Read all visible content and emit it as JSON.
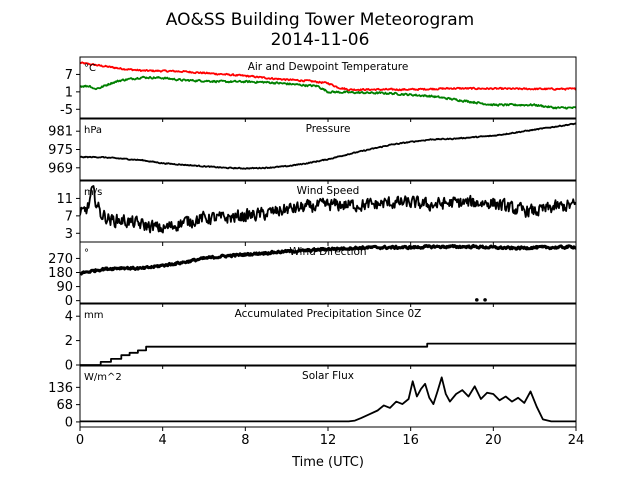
{
  "figure": {
    "title_line1": "AO&SS Building Tower Meteorogram",
    "title_line2": "2014-11-06",
    "xlabel": "Time (UTC)"
  },
  "chart_data": {
    "type": "line",
    "xlim": [
      0,
      24
    ],
    "xticks": [
      0,
      4,
      8,
      12,
      16,
      20,
      24
    ],
    "grid": false,
    "panels": [
      {
        "id": "temperature",
        "title": "Air and Dewpoint Temperature",
        "unit": "°C",
        "ylim": [
          -8,
          13
        ],
        "yticks": [
          -5,
          1,
          7
        ],
        "series": [
          {
            "color": "#ff0000",
            "noise": 0.25,
            "points": [
              [
                0,
                11
              ],
              [
                0.5,
                10.5
              ],
              [
                1,
                10
              ],
              [
                1.5,
                9.5
              ],
              [
                2,
                9
              ],
              [
                3,
                8.3
              ],
              [
                4,
                8.2
              ],
              [
                5,
                8
              ],
              [
                6,
                7.5
              ],
              [
                7,
                7
              ],
              [
                8,
                6.5
              ],
              [
                9,
                5.8
              ],
              [
                10,
                5.2
              ],
              [
                11,
                4.8
              ],
              [
                12,
                4
              ],
              [
                12.5,
                2.5
              ],
              [
                13,
                1.8
              ],
              [
                14,
                1.8
              ],
              [
                16,
                1.8
              ],
              [
                17,
                2
              ],
              [
                18,
                2.2
              ],
              [
                20,
                2.1
              ],
              [
                22,
                2
              ],
              [
                24,
                2
              ]
            ]
          },
          {
            "color": "#008000",
            "noise": 0.3,
            "points": [
              [
                0,
                3
              ],
              [
                0.5,
                3
              ],
              [
                0.7,
                2
              ],
              [
                1,
                2.5
              ],
              [
                1.5,
                4
              ],
              [
                2,
                5
              ],
              [
                3,
                6
              ],
              [
                4,
                5.8
              ],
              [
                5,
                5
              ],
              [
                6,
                4.8
              ],
              [
                7,
                4.5
              ],
              [
                8,
                4.5
              ],
              [
                9,
                4.3
              ],
              [
                10,
                3.8
              ],
              [
                11,
                3.2
              ],
              [
                11.5,
                3
              ],
              [
                12,
                1
              ],
              [
                13,
                0.8
              ],
              [
                15,
                0.5
              ],
              [
                16,
                0
              ],
              [
                17,
                -0.5
              ],
              [
                18,
                -1.5
              ],
              [
                19,
                -2.5
              ],
              [
                20,
                -3.5
              ],
              [
                21,
                -3.5
              ],
              [
                22,
                -3.5
              ],
              [
                23,
                -4.5
              ],
              [
                24,
                -4.5
              ]
            ]
          }
        ]
      },
      {
        "id": "pressure",
        "title": "Pressure",
        "unit": "hPa",
        "ylim": [
          965,
          985
        ],
        "yticks": [
          969,
          975,
          981
        ],
        "series": [
          {
            "color": "#000000",
            "noise": 0.15,
            "points": [
              [
                0,
                972.5
              ],
              [
                1,
                972.5
              ],
              [
                2,
                972
              ],
              [
                3,
                971.5
              ],
              [
                4,
                970.5
              ],
              [
                5,
                970
              ],
              [
                6,
                969.5
              ],
              [
                7,
                969
              ],
              [
                8,
                968.8
              ],
              [
                9,
                969
              ],
              [
                10,
                969.5
              ],
              [
                11,
                970.5
              ],
              [
                12,
                971.8
              ],
              [
                13,
                973.5
              ],
              [
                14,
                975
              ],
              [
                15,
                976.5
              ],
              [
                16,
                977.5
              ],
              [
                17,
                978.3
              ],
              [
                18,
                978.5
              ],
              [
                19,
                979
              ],
              [
                20,
                979.5
              ],
              [
                21,
                980.5
              ],
              [
                22,
                981.5
              ],
              [
                23,
                982.5
              ],
              [
                24,
                983.5
              ]
            ]
          }
        ]
      },
      {
        "id": "wind_speed",
        "title": "Wind Speed",
        "unit": "m/s",
        "ylim": [
          1,
          15
        ],
        "yticks": [
          3,
          7,
          11
        ],
        "series": [
          {
            "color": "#000000",
            "noise": 1.3,
            "points": [
              [
                0,
                7
              ],
              [
                0.4,
                9
              ],
              [
                0.6,
                13
              ],
              [
                0.8,
                10
              ],
              [
                1,
                7.5
              ],
              [
                1.5,
                6
              ],
              [
                2,
                6
              ],
              [
                3,
                5
              ],
              [
                4,
                4
              ],
              [
                5,
                5.5
              ],
              [
                6,
                6.5
              ],
              [
                7,
                6.5
              ],
              [
                8,
                7
              ],
              [
                9,
                7.5
              ],
              [
                10,
                8.5
              ],
              [
                11,
                9
              ],
              [
                12,
                9.5
              ],
              [
                13,
                9.5
              ],
              [
                14,
                9.5
              ],
              [
                15,
                10
              ],
              [
                16,
                10
              ],
              [
                17,
                9.5
              ],
              [
                18,
                10
              ],
              [
                19,
                10
              ],
              [
                20,
                10
              ],
              [
                21,
                8.5
              ],
              [
                22,
                8
              ],
              [
                23,
                9
              ],
              [
                24,
                9.5
              ]
            ]
          }
        ]
      },
      {
        "id": "wind_direction",
        "title": "Wind Direction",
        "unit": "°",
        "ylim": [
          -15,
          375
        ],
        "yticks": [
          0,
          90,
          180,
          270
        ],
        "series": [
          {
            "color": "#000000",
            "noise": 7,
            "points": [
              [
                0,
                175
              ],
              [
                1,
                200
              ],
              [
                2,
                210
              ],
              [
                3,
                205
              ],
              [
                4,
                225
              ],
              [
                5,
                245
              ],
              [
                6,
                270
              ],
              [
                7,
                285
              ],
              [
                8,
                295
              ],
              [
                9,
                305
              ],
              [
                10,
                315
              ],
              [
                11,
                320
              ],
              [
                12,
                330
              ],
              [
                13,
                335
              ],
              [
                14,
                340
              ],
              [
                15,
                340
              ],
              [
                16,
                340
              ],
              [
                17,
                345
              ],
              [
                18,
                345
              ],
              [
                19,
                345
              ],
              [
                20,
                340
              ],
              [
                21,
                335
              ],
              [
                22,
                340
              ],
              [
                23,
                340
              ],
              [
                24,
                345
              ]
            ]
          }
        ],
        "scatter": [
          [
            19.2,
            5
          ],
          [
            19.6,
            5
          ]
        ]
      },
      {
        "id": "precipitation",
        "title": "Accumulated Precipitation Since 0Z",
        "unit": "mm",
        "ylim": [
          0,
          5
        ],
        "yticks": [
          0,
          2,
          4
        ],
        "step": true,
        "series": [
          {
            "color": "#000000",
            "noise": 0,
            "points": [
              [
                0,
                0
              ],
              [
                1,
                0
              ],
              [
                1,
                0.25
              ],
              [
                1.5,
                0.25
              ],
              [
                1.5,
                0.5
              ],
              [
                2,
                0.5
              ],
              [
                2,
                0.8
              ],
              [
                2.4,
                0.8
              ],
              [
                2.4,
                1
              ],
              [
                2.8,
                1
              ],
              [
                2.8,
                1.2
              ],
              [
                3.2,
                1.2
              ],
              [
                3.2,
                1.5
              ],
              [
                16.8,
                1.5
              ],
              [
                16.8,
                1.75
              ],
              [
                24,
                1.75
              ]
            ]
          }
        ]
      },
      {
        "id": "solar_flux",
        "title": "Solar Flux",
        "unit": "W/m^2",
        "ylim": [
          -20,
          220
        ],
        "yticks": [
          0,
          68,
          136
        ],
        "series": [
          {
            "color": "#000000",
            "noise": 0,
            "points": [
              [
                0,
                2
              ],
              [
                13,
                2
              ],
              [
                13.3,
                5
              ],
              [
                13.6,
                15
              ],
              [
                14,
                30
              ],
              [
                14.4,
                45
              ],
              [
                14.7,
                65
              ],
              [
                15,
                55
              ],
              [
                15.3,
                80
              ],
              [
                15.6,
                70
              ],
              [
                15.9,
                90
              ],
              [
                16.1,
                160
              ],
              [
                16.3,
                100
              ],
              [
                16.5,
                130
              ],
              [
                16.7,
                150
              ],
              [
                16.9,
                95
              ],
              [
                17.1,
                70
              ],
              [
                17.3,
                120
              ],
              [
                17.5,
                175
              ],
              [
                17.7,
                110
              ],
              [
                17.9,
                80
              ],
              [
                18.2,
                110
              ],
              [
                18.5,
                125
              ],
              [
                18.8,
                100
              ],
              [
                19.1,
                140
              ],
              [
                19.4,
                90
              ],
              [
                19.7,
                115
              ],
              [
                20,
                110
              ],
              [
                20.3,
                85
              ],
              [
                20.6,
                100
              ],
              [
                20.9,
                80
              ],
              [
                21.2,
                95
              ],
              [
                21.5,
                75
              ],
              [
                21.8,
                120
              ],
              [
                22.1,
                60
              ],
              [
                22.4,
                10
              ],
              [
                22.8,
                2
              ],
              [
                24,
                2
              ]
            ]
          }
        ]
      }
    ]
  }
}
